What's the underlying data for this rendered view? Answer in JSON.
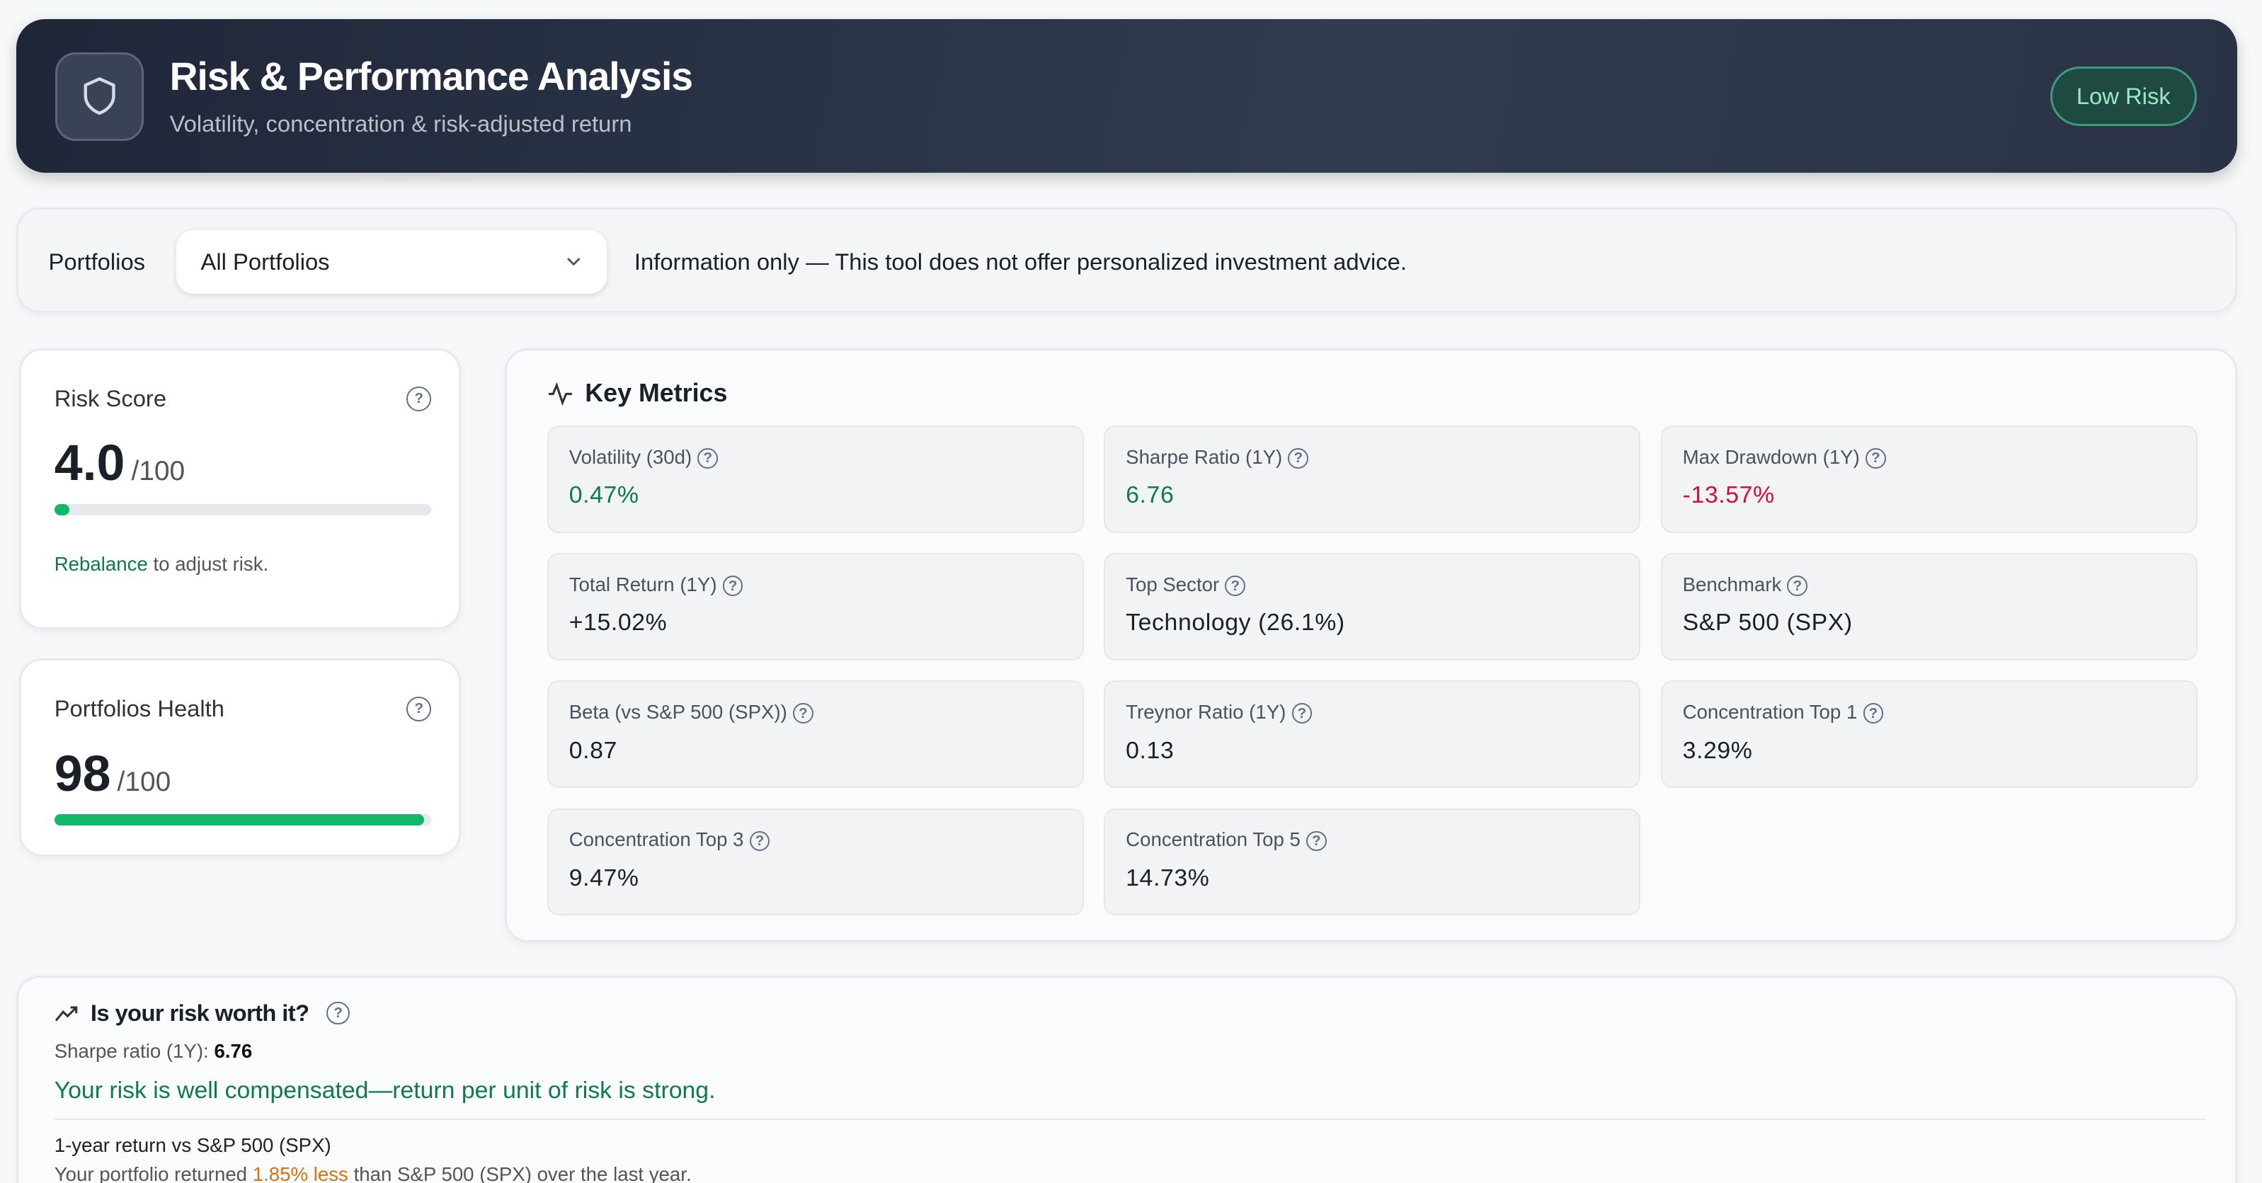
{
  "header": {
    "title": "Risk & Performance Analysis",
    "subtitle": "Volatility, concentration & risk-adjusted return",
    "badge": "Low Risk",
    "icon": "shield-icon"
  },
  "filter": {
    "label": "Portfolios",
    "selected": "All Portfolios",
    "disclaimer": "Information only — This tool does not offer personalized investment advice."
  },
  "risk_score": {
    "title": "Risk Score",
    "value": "4.0",
    "max": "/100",
    "level_percent": 4,
    "link": "Rebalance",
    "suffix": "to adjust risk."
  },
  "health": {
    "title": "Portfolios Health",
    "value": "98",
    "max": "/100",
    "level_percent": 98
  },
  "metrics": {
    "title": "Key Metrics",
    "items": [
      {
        "label": "Volatility (30d)",
        "value": "0.47%",
        "color": "#0f7a4d"
      },
      {
        "label": "Sharpe Ratio (1Y)",
        "value": "6.76",
        "color": "#0f7a4d"
      },
      {
        "label": "Max Drawdown (1Y)",
        "value": "-13.57%",
        "color": "#d0103a"
      },
      {
        "label": "Total Return (1Y)",
        "value": "+15.02%",
        "color": "#1b1f27"
      },
      {
        "label": "Top Sector",
        "value": "Technology (26.1%)",
        "color": "#1b1f27"
      },
      {
        "label": "Benchmark",
        "value": "S&P 500 (SPX)",
        "color": "#1b1f27"
      },
      {
        "label": "Beta (vs S&P 500 (SPX))",
        "value": "0.87",
        "color": "#1b1f27"
      },
      {
        "label": "Treynor Ratio (1Y)",
        "value": "0.13",
        "color": "#1b1f27"
      },
      {
        "label": "Concentration Top 1",
        "value": "3.29%",
        "color": "#1b1f27"
      },
      {
        "label": "Concentration Top 3",
        "value": "9.47%",
        "color": "#1b1f27"
      },
      {
        "label": "Concentration Top 5",
        "value": "14.73%",
        "color": "#1b1f27"
      }
    ]
  },
  "worth": {
    "title": "Is your risk worth it?",
    "sharpe_label": "Sharpe ratio (1Y):",
    "sharpe_value": "6.76",
    "verdict": "Your risk is well compensated—return per unit of risk is strong.",
    "compare_title": "1-year return vs S&P 500 (SPX)",
    "compare_prefix": "Your portfolio returned",
    "compare_diff": "1.85% less",
    "compare_suffix": "than S&P 500 (SPX) over the last year."
  }
}
